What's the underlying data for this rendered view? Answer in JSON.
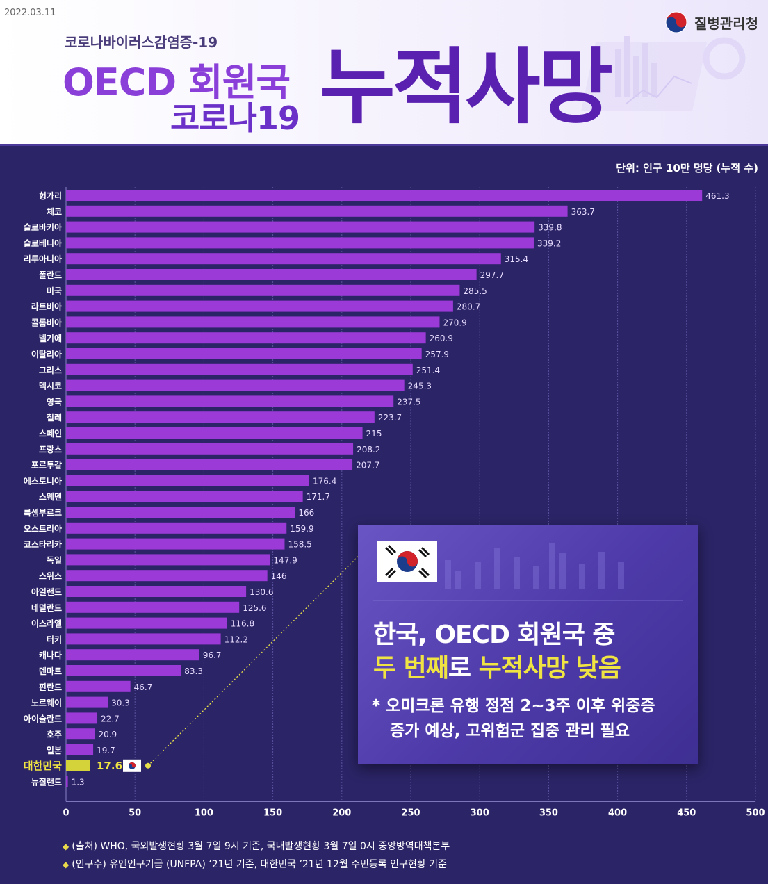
{
  "header": {
    "date": "2022.03.11",
    "agency": "질병관리청",
    "subtitle": "코로나바이러스감염증-19",
    "title_line1": "OECD 회원국",
    "title_line2": "코로나19",
    "title_big": "누적사망"
  },
  "unit": "단위: 인구 10만 명당 (누적 수)",
  "colors": {
    "bar": "#9b3ad6",
    "highlight_bar": "#d4d43a",
    "highlight_text": "#f0e442",
    "background": "#2b2466"
  },
  "chart_data": {
    "type": "bar",
    "orientation": "horizontal",
    "categories": [
      "헝가리",
      "체코",
      "슬로바키아",
      "슬로베니아",
      "리투아니아",
      "폴란드",
      "미국",
      "라트비아",
      "콜롬비아",
      "벨기에",
      "이탈리아",
      "그리스",
      "멕시코",
      "영국",
      "칠레",
      "스페인",
      "프랑스",
      "포르투갈",
      "에스토니아",
      "스웨덴",
      "룩셈부르크",
      "오스트리아",
      "코스타리카",
      "독일",
      "스위스",
      "아일랜드",
      "네덜란드",
      "이스라엘",
      "터키",
      "캐나다",
      "덴마트",
      "핀란드",
      "노르웨이",
      "아이슬란드",
      "호주",
      "일본",
      "대한민국",
      "뉴질랜드"
    ],
    "values": [
      461.3,
      363.7,
      339.8,
      339.2,
      315.4,
      297.7,
      285.5,
      280.7,
      270.9,
      260.9,
      257.9,
      251.4,
      245.3,
      237.5,
      223.7,
      215,
      208.2,
      207.7,
      176.4,
      171.7,
      166,
      159.9,
      158.5,
      147.9,
      146,
      130.6,
      125.6,
      116.8,
      112.2,
      96.7,
      83.3,
      46.7,
      30.3,
      22.7,
      20.9,
      19.7,
      17.6,
      1.3
    ],
    "highlight": "대한민국",
    "xlim": [
      0,
      500
    ],
    "xticks": [
      "0",
      "50",
      "100",
      "150",
      "200",
      "250",
      "300",
      "350",
      "400",
      "450",
      "500"
    ],
    "grid": true
  },
  "callout": {
    "title_line1": "한국, OECD 회원국 중",
    "title_line2_a": "두 번째",
    "title_line2_b": "로 ",
    "title_line2_c": "누적사망 낮음",
    "note_line1": "* 오미크론 유행 정점 2~3주 이후 위중증",
    "note_line2": "증가 예상, 고위험군 집중 관리 필요"
  },
  "footnotes": {
    "source": "(출처)  WHO, 국외발생현황 3월 7일 9시 기준, 국내발생현황 3월 7일 0시 중앙방역대책본부",
    "population": "(인구수)  유엔인구기금 (UNFPA) ‘21년 기준, 대한민국 ’21년 12월 주민등록 인구현황 기준"
  }
}
